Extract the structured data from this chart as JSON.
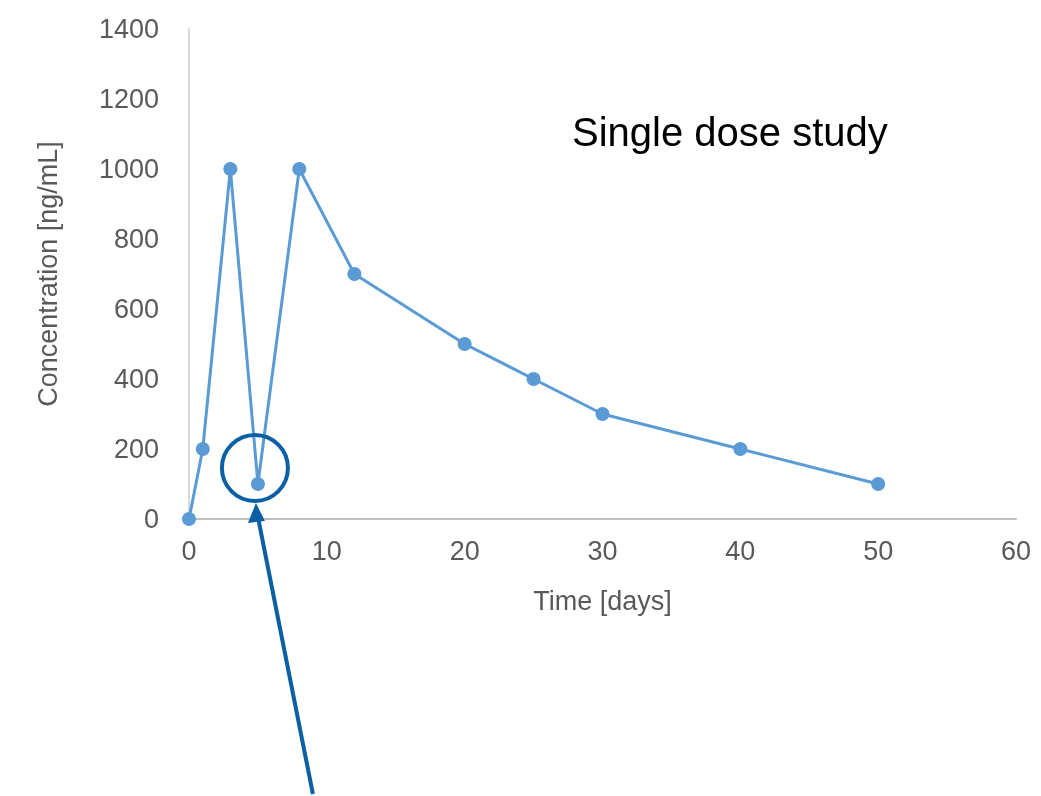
{
  "chart_data": {
    "type": "line",
    "xlabel": "Time [days]",
    "ylabel": "Concentration [ng/mL]",
    "x": [
      0,
      1,
      3,
      5,
      8,
      12,
      20,
      25,
      30,
      40,
      50
    ],
    "series": [
      {
        "color": "#5b9bd5",
        "values": [
          0,
          200,
          1000,
          100,
          1000,
          700,
          500,
          400,
          300,
          200,
          100
        ]
      }
    ],
    "xlim": [
      0,
      60
    ],
    "xticks": [
      0,
      10,
      20,
      30,
      40,
      50,
      60
    ],
    "ylim": [
      0,
      1400
    ],
    "yticks": [
      0,
      200,
      400,
      600,
      800,
      1000,
      1200,
      1400
    ],
    "grid": false,
    "marker": "circle",
    "line_style": "solid",
    "annotations": [
      "Single dose study"
    ]
  }
}
